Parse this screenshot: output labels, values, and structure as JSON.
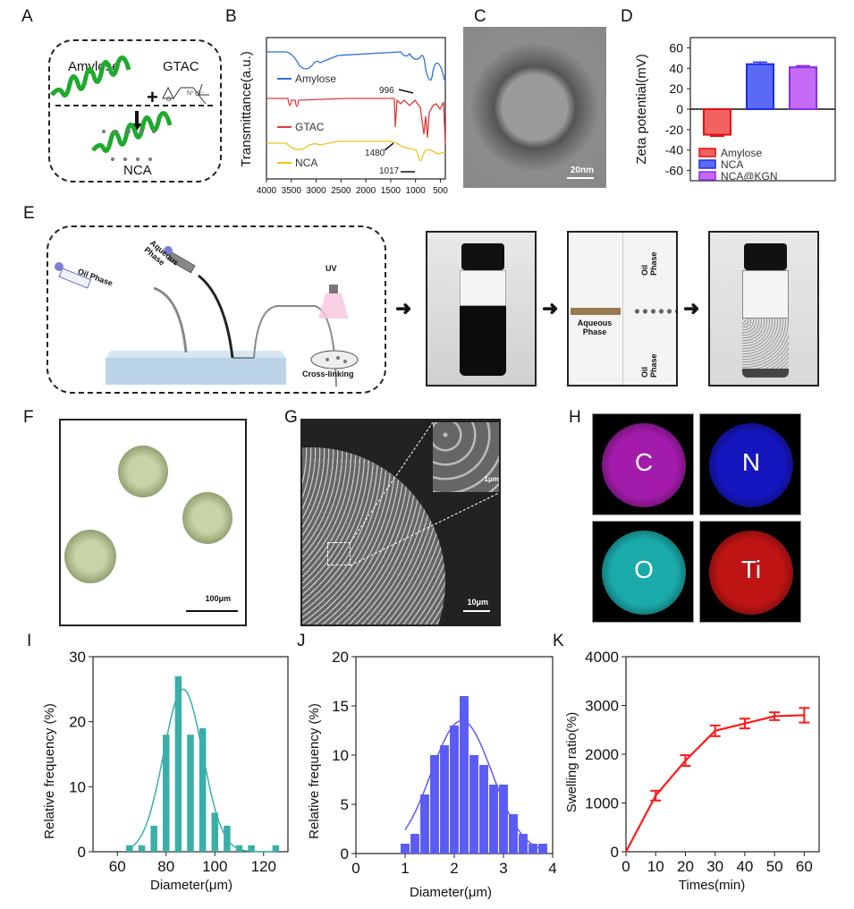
{
  "panel_labels": [
    "A",
    "B",
    "C",
    "D",
    "E",
    "F",
    "G",
    "H",
    "I",
    "J",
    "K"
  ],
  "panel_a": {
    "reactant1": "Amylose",
    "reactant2": "GTAC",
    "chloride": "Cl⁻",
    "nitrogen": "N⁺",
    "oxygen": "O",
    "plus": "+",
    "product": "NCA"
  },
  "panel_c": {
    "scale_bar": "20nm"
  },
  "panel_e": {
    "oil_phase": "Oil Phase",
    "aqueous_phase": "Aqueous Phase",
    "uv": "UV",
    "cross_linking": "Cross-linking",
    "chip_oil_top": "Oil Phase",
    "chip_oil_bottom": "Oil Phase",
    "chip_aqueous": "Aqueous Phase"
  },
  "panel_f": {
    "scale_bar": "100μm"
  },
  "panel_g": {
    "scale_bar": "10μm",
    "inset_scale_bar": "1μm"
  },
  "panel_h": {
    "elements": [
      "C",
      "N",
      "O",
      "Ti"
    ],
    "colors": [
      "#c020c8",
      "#1a1ae0",
      "#20c8c8",
      "#e01818"
    ]
  },
  "chart_data": [
    {
      "id": "B",
      "type": "line",
      "title": "",
      "xlabel": "",
      "ylabel": "Transmittance(a.u.)",
      "xlim": [
        4000,
        400
      ],
      "xticks": [
        "4000",
        "3500",
        "3000",
        "2500",
        "2000",
        "1500",
        "1000",
        "500"
      ],
      "legend": [
        {
          "name": "Amylose",
          "color": "#2f6fd6"
        },
        {
          "name": "GTAC",
          "color": "#e23a3a"
        },
        {
          "name": "NCA",
          "color": "#f0c41c"
        }
      ],
      "annotations": [
        {
          "text": "996",
          "series": "Amylose",
          "x": 996
        },
        {
          "text": "1480",
          "series": "NCA",
          "x": 1480
        },
        {
          "text": "1017",
          "series": "NCA",
          "x": 1017
        }
      ]
    },
    {
      "id": "D",
      "type": "bar",
      "ylabel": "Zeta potential(mV)",
      "ylim": [
        -70,
        70
      ],
      "yticks": [
        "60",
        "40",
        "20",
        "0",
        "-20",
        "-40",
        "-60"
      ],
      "categories": [
        "Amylose",
        "NCA",
        "NCA@KGN"
      ],
      "values": [
        -25,
        44,
        41
      ],
      "errors": [
        1.5,
        2,
        1.5
      ],
      "colors": [
        "#f26262",
        "#5a6af5",
        "#c56af5"
      ],
      "edge_colors": [
        "#e01010",
        "#1a2ee8",
        "#8a2ee8"
      ],
      "legend": [
        "Amylose",
        "NCA",
        "NCA@KGN"
      ],
      "legend_position": "bottom-left"
    },
    {
      "id": "I",
      "type": "bar",
      "xlabel": "Diameter(μm)",
      "ylabel": "Relative frequency (%)",
      "xlim": [
        50,
        130
      ],
      "ylim": [
        0,
        30
      ],
      "xticks": [
        "60",
        "80",
        "100",
        "120"
      ],
      "yticks": [
        "0",
        "10",
        "20",
        "30"
      ],
      "x": [
        65,
        70,
        75,
        80,
        85,
        90,
        95,
        100,
        105,
        110,
        115,
        120,
        125
      ],
      "values": [
        1,
        1,
        4,
        18,
        27,
        18,
        19,
        6,
        4,
        1,
        1,
        0,
        1
      ],
      "fit_peak": 25,
      "color": "#3aafa9"
    },
    {
      "id": "J",
      "type": "bar",
      "xlabel": "Diameter(μm)",
      "ylabel": "Relative frequency (%)",
      "xlim": [
        0,
        4
      ],
      "ylim": [
        0,
        20
      ],
      "xticks": [
        "0",
        "1",
        "2",
        "3",
        "4"
      ],
      "yticks": [
        "0",
        "5",
        "10",
        "15",
        "20"
      ],
      "x": [
        1.0,
        1.2,
        1.4,
        1.6,
        1.8,
        2.0,
        2.2,
        2.4,
        2.6,
        2.8,
        3.0,
        3.2,
        3.4,
        3.6,
        3.8
      ],
      "values": [
        1,
        2,
        6,
        10,
        11,
        13,
        16,
        10,
        9,
        7,
        7,
        4,
        2,
        1,
        1
      ],
      "fit_peak": 13.5,
      "color": "#5b5bf5"
    },
    {
      "id": "K",
      "type": "line",
      "xlabel": "Times(min)",
      "ylabel": "Swelling ratio(%)",
      "xlim": [
        0,
        65
      ],
      "ylim": [
        0,
        4000
      ],
      "xticks": [
        "0",
        "10",
        "20",
        "30",
        "40",
        "50",
        "60"
      ],
      "yticks": [
        "0",
        "1000",
        "2000",
        "3000",
        "4000"
      ],
      "x": [
        0,
        10,
        20,
        30,
        40,
        50,
        60
      ],
      "values": [
        0,
        1150,
        1870,
        2480,
        2630,
        2780,
        2800
      ],
      "errors": [
        0,
        100,
        110,
        110,
        100,
        80,
        150
      ],
      "color": "#ff1a1a"
    }
  ]
}
